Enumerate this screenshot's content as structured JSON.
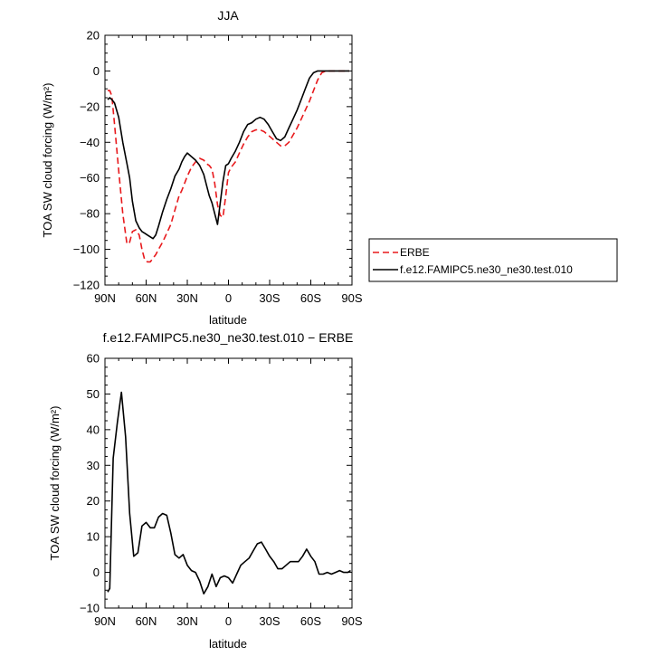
{
  "chart_data": [
    {
      "type": "line",
      "title": "JJA",
      "xlabel": "latitude",
      "ylabel": "TOA SW cloud forcing (W/m²)",
      "xlim": [
        -90,
        90
      ],
      "ylim": [
        -120,
        20
      ],
      "xticks": [
        -90,
        -60,
        -30,
        0,
        30,
        60,
        90
      ],
      "xticklabels": [
        "90N",
        "60N",
        "30N",
        "0",
        "30S",
        "60S",
        "90S"
      ],
      "yticks": [
        -120,
        -100,
        -80,
        -60,
        -40,
        -20,
        0,
        20
      ],
      "yticklabels": [
        "−120",
        "−100",
        "−80",
        "−60",
        "−40",
        "−20",
        "0",
        "20"
      ],
      "legend_position": "right",
      "series": [
        {
          "name": "ERBE",
          "color": "#e8191c",
          "dash": "dashed",
          "x": [
            -88,
            -86.5,
            -85,
            -83,
            -80,
            -77,
            -74,
            -72,
            -70,
            -67.5,
            -65,
            -63,
            -61,
            -59,
            -57,
            -55,
            -53,
            -51,
            -48,
            -45,
            -42,
            -39,
            -36,
            -34,
            -32,
            -30,
            -27,
            -24,
            -21,
            -18,
            -16,
            -14,
            -12,
            -10,
            -8,
            -6,
            -4,
            -2,
            0,
            2,
            5,
            8,
            11,
            14,
            17,
            20,
            23,
            26,
            29,
            32,
            35,
            38,
            41,
            44,
            47,
            50,
            53,
            56,
            59,
            62,
            65,
            68,
            71,
            74,
            77,
            80,
            83,
            86,
            88
          ],
          "values": [
            -11,
            -11,
            -14,
            -30,
            -56,
            -80,
            -97,
            -96,
            -90,
            -89,
            -92,
            -100,
            -106,
            -107,
            -107,
            -105,
            -103,
            -100,
            -96,
            -91,
            -86,
            -78,
            -70,
            -67,
            -63,
            -59,
            -54,
            -51,
            -49,
            -50,
            -52,
            -53,
            -55,
            -63,
            -75,
            -81,
            -82,
            -70,
            -57,
            -54,
            -51,
            -46,
            -41,
            -37,
            -34,
            -33,
            -33,
            -34,
            -36,
            -38,
            -40,
            -42,
            -42,
            -40,
            -36,
            -32,
            -27,
            -22,
            -17,
            -11,
            -5,
            -1,
            0,
            0,
            0,
            0,
            0,
            0,
            0
          ]
        },
        {
          "name": "f.e12.FAMIPC5.ne30_ne30.test.010",
          "color": "#000000",
          "dash": "solid",
          "x": [
            -88,
            -86.5,
            -85,
            -83,
            -80,
            -77,
            -74,
            -72,
            -70,
            -67.5,
            -65,
            -63,
            -61,
            -59,
            -57,
            -55,
            -53,
            -51,
            -48,
            -45,
            -42,
            -39,
            -36,
            -34,
            -32,
            -30,
            -27,
            -24,
            -21,
            -18,
            -16,
            -14,
            -12,
            -10,
            -8,
            -6,
            -4,
            -2,
            0,
            2,
            5,
            8,
            11,
            14,
            17,
            20,
            23,
            26,
            29,
            32,
            35,
            38,
            41,
            44,
            47,
            50,
            53,
            56,
            59,
            62,
            65,
            68,
            71,
            74,
            77,
            80,
            83,
            86,
            88
          ],
          "values": [
            -16,
            -15,
            -16,
            -18,
            -26,
            -40,
            -52,
            -60,
            -73,
            -84,
            -88,
            -90,
            -91,
            -92,
            -93,
            -94,
            -92,
            -87,
            -79,
            -72,
            -66,
            -59,
            -55,
            -51,
            -48,
            -46,
            -48,
            -50,
            -53,
            -58,
            -64,
            -70,
            -74,
            -80,
            -86,
            -74,
            -62,
            -53,
            -52,
            -49,
            -45,
            -40,
            -34,
            -30,
            -29,
            -27,
            -26,
            -27,
            -30,
            -34,
            -38,
            -39,
            -37,
            -32,
            -27,
            -22,
            -16,
            -10,
            -4,
            -1,
            0,
            0,
            0,
            0,
            0,
            0,
            0,
            0,
            0
          ]
        }
      ]
    },
    {
      "type": "line",
      "title": "f.e12.FAMIPC5.ne30_ne30.test.010 − ERBE",
      "xlabel": "latitude",
      "ylabel": "TOA SW cloud forcing (W/m²)",
      "xlim": [
        -90,
        90
      ],
      "ylim": [
        -10,
        60
      ],
      "xticks": [
        -90,
        -60,
        -30,
        0,
        30,
        60,
        90
      ],
      "xticklabels": [
        "90N",
        "60N",
        "30N",
        "0",
        "30S",
        "60S",
        "90S"
      ],
      "yticks": [
        -10,
        0,
        10,
        20,
        30,
        40,
        50,
        60
      ],
      "yticklabels": [
        "−10",
        "0",
        "10",
        "20",
        "30",
        "40",
        "50",
        "60"
      ],
      "series": [
        {
          "color": "#000000",
          "dash": "solid",
          "x": [
            -88,
            -86.5,
            -84,
            -81,
            -78,
            -75,
            -72,
            -69,
            -66,
            -63,
            -60,
            -57,
            -54,
            -51,
            -48,
            -45,
            -42,
            -39,
            -36,
            -33,
            -30,
            -27,
            -24,
            -21,
            -18,
            -15,
            -12,
            -9,
            -6,
            -3,
            0,
            3,
            6,
            9,
            12,
            15,
            18,
            21,
            24,
            27,
            30,
            33,
            36,
            39,
            42,
            45,
            48,
            51,
            54,
            57,
            60,
            63,
            66,
            69,
            72,
            75,
            78,
            81,
            84,
            87,
            89
          ],
          "values": [
            -5.5,
            -4.5,
            32,
            42,
            50.5,
            38,
            16.5,
            4.5,
            5.5,
            13,
            14,
            12.5,
            12.5,
            15.5,
            16.5,
            16,
            11,
            5,
            4,
            5,
            2,
            0.5,
            0,
            -2.5,
            -6,
            -4,
            -0.5,
            -4,
            -1.5,
            -1,
            -1.5,
            -3,
            -0.5,
            2,
            3,
            4,
            6,
            8,
            8.5,
            6.5,
            4.5,
            3,
            1,
            1,
            2,
            3,
            3,
            3,
            4.5,
            6.5,
            4.5,
            3,
            -0.5,
            -0.5,
            0,
            -0.5,
            0,
            0.5,
            0,
            0,
            0.5
          ]
        }
      ]
    }
  ]
}
